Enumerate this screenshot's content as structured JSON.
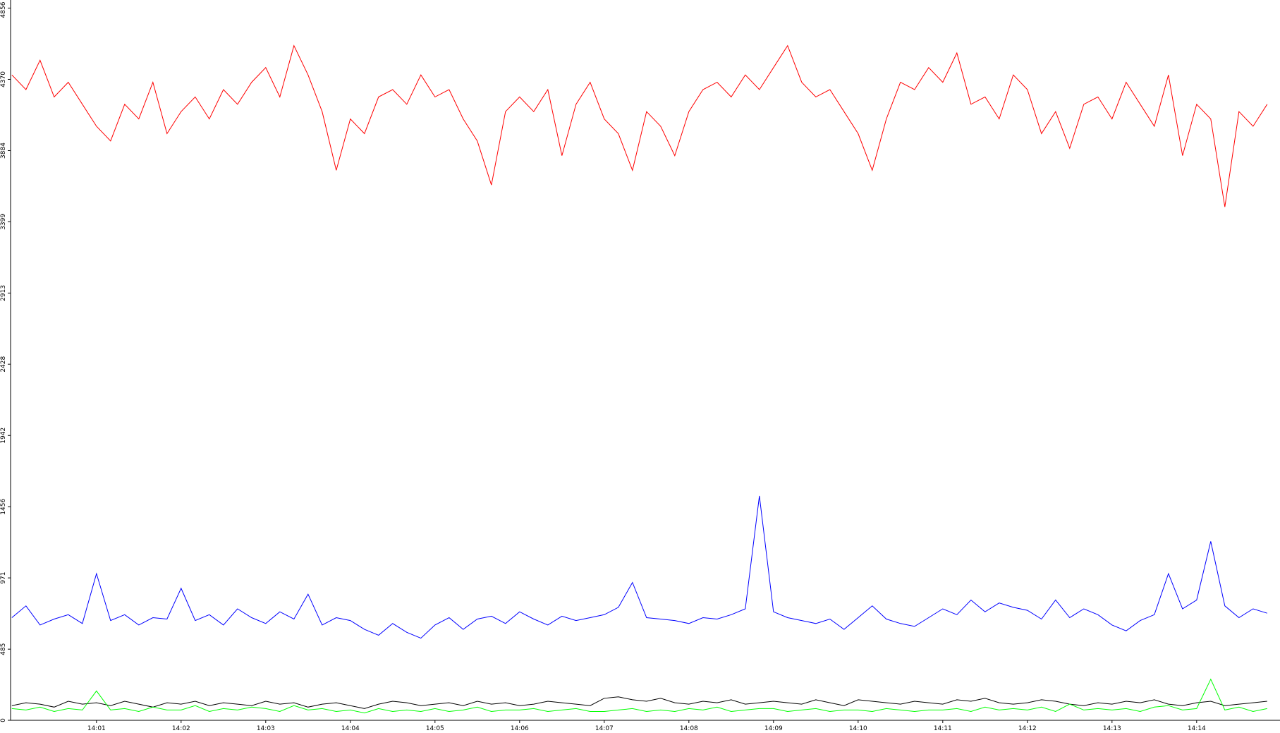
{
  "chart_data": {
    "type": "line",
    "categories": [
      null,
      null,
      null,
      null,
      null,
      null,
      "14:01",
      null,
      null,
      null,
      null,
      null,
      "14:02",
      null,
      null,
      null,
      null,
      null,
      "14:03",
      null,
      null,
      null,
      null,
      null,
      "14:04",
      null,
      null,
      null,
      null,
      null,
      "14:05",
      null,
      null,
      null,
      null,
      null,
      "14:06",
      null,
      null,
      null,
      null,
      null,
      "14:07",
      null,
      null,
      null,
      null,
      null,
      "14:08",
      null,
      null,
      null,
      null,
      null,
      "14:09",
      null,
      null,
      null,
      null,
      null,
      "14:10",
      null,
      null,
      null,
      null,
      null,
      "14:11",
      null,
      null,
      null,
      null,
      null,
      "14:12",
      null,
      null,
      null,
      null,
      null,
      "14:13",
      null,
      null,
      null,
      null,
      null,
      "14:14",
      null,
      null,
      null,
      null,
      null
    ],
    "series": [
      {
        "color": "#ff0000",
        "values": [
          4400,
          4300,
          4500,
          4250,
          4350,
          4200,
          4050,
          3950,
          4200,
          4100,
          4350,
          4000,
          4150,
          4250,
          4100,
          4300,
          4200,
          4350,
          4450,
          4250,
          4600,
          4400,
          4150,
          3750,
          4100,
          4000,
          4250,
          4300,
          4200,
          4400,
          4250,
          4300,
          4100,
          3950,
          3650,
          4150,
          4250,
          4150,
          4300,
          3850,
          4200,
          4350,
          4100,
          4000,
          3750,
          4150,
          4050,
          3850,
          4150,
          4300,
          4350,
          4250,
          4400,
          4300,
          4450,
          4600,
          4350,
          4250,
          4300,
          4150,
          4000,
          3750,
          4100,
          4350,
          4300,
          4450,
          4350,
          4550,
          4200,
          4250,
          4100,
          4400,
          4300,
          4000,
          4150,
          3900,
          4200,
          4250,
          4100,
          4350,
          4200,
          4050,
          4400,
          3850,
          4200,
          4100,
          3500,
          4150,
          4050,
          4200
        ]
      },
      {
        "color": "#0000ff",
        "values": [
          700,
          780,
          650,
          690,
          720,
          660,
          1000,
          680,
          720,
          650,
          700,
          690,
          900,
          680,
          720,
          650,
          760,
          700,
          660,
          740,
          690,
          860,
          650,
          700,
          680,
          620,
          580,
          660,
          600,
          560,
          650,
          700,
          620,
          690,
          710,
          660,
          740,
          690,
          650,
          710,
          680,
          700,
          720,
          770,
          940,
          700,
          690,
          680,
          660,
          700,
          690,
          720,
          760,
          1530,
          740,
          700,
          680,
          660,
          690,
          620,
          700,
          780,
          690,
          660,
          640,
          700,
          760,
          720,
          820,
          740,
          800,
          770,
          750,
          690,
          820,
          700,
          760,
          720,
          650,
          610,
          680,
          720,
          1000,
          760,
          820,
          1220,
          780,
          700,
          760,
          730
        ]
      },
      {
        "color": "#000000",
        "values": [
          100,
          120,
          110,
          90,
          130,
          110,
          120,
          100,
          130,
          110,
          90,
          120,
          110,
          130,
          100,
          120,
          110,
          100,
          130,
          110,
          120,
          90,
          110,
          120,
          100,
          80,
          110,
          130,
          120,
          100,
          110,
          120,
          100,
          130,
          110,
          120,
          100,
          110,
          130,
          120,
          110,
          100,
          150,
          160,
          140,
          130,
          150,
          120,
          110,
          130,
          120,
          140,
          110,
          120,
          130,
          120,
          110,
          140,
          120,
          100,
          140,
          130,
          120,
          110,
          130,
          120,
          110,
          140,
          130,
          150,
          120,
          110,
          120,
          140,
          130,
          110,
          100,
          120,
          110,
          130,
          120,
          140,
          110,
          100,
          120,
          130,
          100,
          110,
          120,
          130
        ]
      },
      {
        "color": "#00ff00",
        "values": [
          80,
          70,
          90,
          60,
          80,
          70,
          200,
          70,
          80,
          60,
          90,
          70,
          70,
          100,
          60,
          80,
          70,
          90,
          80,
          60,
          100,
          70,
          80,
          60,
          70,
          50,
          80,
          60,
          70,
          60,
          80,
          60,
          70,
          90,
          60,
          70,
          70,
          80,
          60,
          70,
          80,
          60,
          60,
          70,
          80,
          60,
          70,
          60,
          80,
          70,
          90,
          60,
          70,
          80,
          80,
          60,
          70,
          80,
          60,
          70,
          70,
          60,
          80,
          70,
          60,
          70,
          70,
          80,
          60,
          90,
          70,
          80,
          70,
          90,
          60,
          110,
          70,
          80,
          70,
          80,
          60,
          90,
          100,
          70,
          80,
          280,
          70,
          90,
          60,
          80
        ]
      }
    ],
    "ylim": [
      0,
      4911
    ],
    "yticks": [
      0,
      485,
      971,
      1456,
      1942,
      2428,
      2913,
      3399,
      3884,
      4370,
      4856
    ]
  }
}
